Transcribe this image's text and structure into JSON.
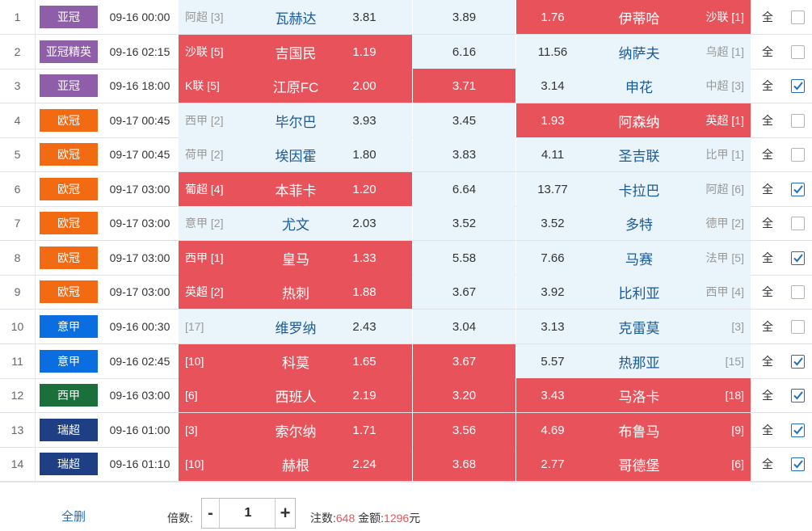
{
  "leagues": {
    "亚冠": "#8e5ea8",
    "亚冠精英": "#8e5ea8",
    "欧冠": "#f26b13",
    "意甲": "#0b6ee0",
    "西甲": "#1b6f3a",
    "瑞超": "#1e3f84"
  },
  "rows": [
    {
      "num": "1",
      "league": "亚冠",
      "time": "09-16 00:00",
      "home_rank": "阿超 [3]",
      "home": "瓦赫达",
      "home_odds": "3.81",
      "draw_odds": "3.89",
      "away_odds": "1.76",
      "away": "伊蒂哈",
      "away_rank": "沙联 [1]",
      "home_sel": false,
      "draw_sel": false,
      "away_sel": true,
      "all": "全",
      "checked": false
    },
    {
      "num": "2",
      "league": "亚冠精英",
      "time": "09-16 02:15",
      "home_rank": "沙联 [5]",
      "home": "吉国民",
      "home_odds": "1.19",
      "draw_odds": "6.16",
      "away_odds": "11.56",
      "away": "纳萨夫",
      "away_rank": "乌超 [1]",
      "home_sel": true,
      "draw_sel": false,
      "away_sel": false,
      "all": "全",
      "checked": false
    },
    {
      "num": "3",
      "league": "亚冠",
      "time": "09-16 18:00",
      "home_rank": "K联 [5]",
      "home": "江原FC",
      "home_odds": "2.00",
      "draw_odds": "3.71",
      "away_odds": "3.14",
      "away": "申花",
      "away_rank": "中超 [3]",
      "home_sel": true,
      "draw_sel": true,
      "away_sel": false,
      "all": "全",
      "checked": true
    },
    {
      "num": "4",
      "league": "欧冠",
      "time": "09-17 00:45",
      "home_rank": "西甲 [2]",
      "home": "毕尔巴",
      "home_odds": "3.93",
      "draw_odds": "3.45",
      "away_odds": "1.93",
      "away": "阿森纳",
      "away_rank": "英超 [1]",
      "home_sel": false,
      "draw_sel": false,
      "away_sel": true,
      "all": "全",
      "checked": false
    },
    {
      "num": "5",
      "league": "欧冠",
      "time": "09-17 00:45",
      "home_rank": "荷甲 [2]",
      "home": "埃因霍",
      "home_odds": "1.80",
      "draw_odds": "3.83",
      "away_odds": "4.11",
      "away": "圣吉联",
      "away_rank": "比甲 [1]",
      "home_sel": false,
      "draw_sel": false,
      "away_sel": false,
      "all": "全",
      "checked": false
    },
    {
      "num": "6",
      "league": "欧冠",
      "time": "09-17 03:00",
      "home_rank": "葡超 [4]",
      "home": "本菲卡",
      "home_odds": "1.20",
      "draw_odds": "6.64",
      "away_odds": "13.77",
      "away": "卡拉巴",
      "away_rank": "阿超 [6]",
      "home_sel": true,
      "draw_sel": false,
      "away_sel": false,
      "all": "全",
      "checked": true
    },
    {
      "num": "7",
      "league": "欧冠",
      "time": "09-17 03:00",
      "home_rank": "意甲 [2]",
      "home": "尤文",
      "home_odds": "2.03",
      "draw_odds": "3.52",
      "away_odds": "3.52",
      "away": "多特",
      "away_rank": "德甲 [2]",
      "home_sel": false,
      "draw_sel": false,
      "away_sel": false,
      "all": "全",
      "checked": false
    },
    {
      "num": "8",
      "league": "欧冠",
      "time": "09-17 03:00",
      "home_rank": "西甲 [1]",
      "home": "皇马",
      "home_odds": "1.33",
      "draw_odds": "5.58",
      "away_odds": "7.66",
      "away": "马赛",
      "away_rank": "法甲 [5]",
      "home_sel": true,
      "draw_sel": false,
      "away_sel": false,
      "all": "全",
      "checked": true
    },
    {
      "num": "9",
      "league": "欧冠",
      "time": "09-17 03:00",
      "home_rank": "英超 [2]",
      "home": "热刺",
      "home_odds": "1.88",
      "draw_odds": "3.67",
      "away_odds": "3.92",
      "away": "比利亚",
      "away_rank": "西甲 [4]",
      "home_sel": true,
      "draw_sel": false,
      "away_sel": false,
      "all": "全",
      "checked": false
    },
    {
      "num": "10",
      "league": "意甲",
      "time": "09-16 00:30",
      "home_rank": "[17]",
      "home": "维罗纳",
      "home_odds": "2.43",
      "draw_odds": "3.04",
      "away_odds": "3.13",
      "away": "克雷莫",
      "away_rank": "[3]",
      "home_sel": false,
      "draw_sel": false,
      "away_sel": false,
      "all": "全",
      "checked": false
    },
    {
      "num": "11",
      "league": "意甲",
      "time": "09-16 02:45",
      "home_rank": "[10]",
      "home": "科莫",
      "home_odds": "1.65",
      "draw_odds": "3.67",
      "away_odds": "5.57",
      "away": "热那亚",
      "away_rank": "[15]",
      "home_sel": true,
      "draw_sel": true,
      "away_sel": false,
      "all": "全",
      "checked": true
    },
    {
      "num": "12",
      "league": "西甲",
      "time": "09-16 03:00",
      "home_rank": "[6]",
      "home": "西班人",
      "home_odds": "2.19",
      "draw_odds": "3.20",
      "away_odds": "3.43",
      "away": "马洛卡",
      "away_rank": "[18]",
      "home_sel": true,
      "draw_sel": true,
      "away_sel": true,
      "all": "全",
      "checked": true
    },
    {
      "num": "13",
      "league": "瑞超",
      "time": "09-16 01:00",
      "home_rank": "[3]",
      "home": "索尔纳",
      "home_odds": "1.71",
      "draw_odds": "3.56",
      "away_odds": "4.69",
      "away": "布鲁马",
      "away_rank": "[9]",
      "home_sel": true,
      "draw_sel": true,
      "away_sel": true,
      "all": "全",
      "checked": true
    },
    {
      "num": "14",
      "league": "瑞超",
      "time": "09-16 01:10",
      "home_rank": "[10]",
      "home": "赫根",
      "home_odds": "2.24",
      "draw_odds": "3.68",
      "away_odds": "2.77",
      "away": "哥德堡",
      "away_rank": "[6]",
      "home_sel": true,
      "draw_sel": true,
      "away_sel": true,
      "all": "全",
      "checked": true
    }
  ],
  "footer": {
    "clear_all": "全删",
    "multiplier_label": "倍数:",
    "minus": "-",
    "plus": "+",
    "multiplier": "1",
    "bets_label": "注数:",
    "bets": "648",
    "amount_label": "金额:",
    "amount": "1296",
    "currency": "元"
  },
  "colors": {
    "selected": "#e8525a",
    "unselected": "#e9f4fb",
    "team_text": "#1a5a99",
    "link": "#1f6fbf"
  }
}
